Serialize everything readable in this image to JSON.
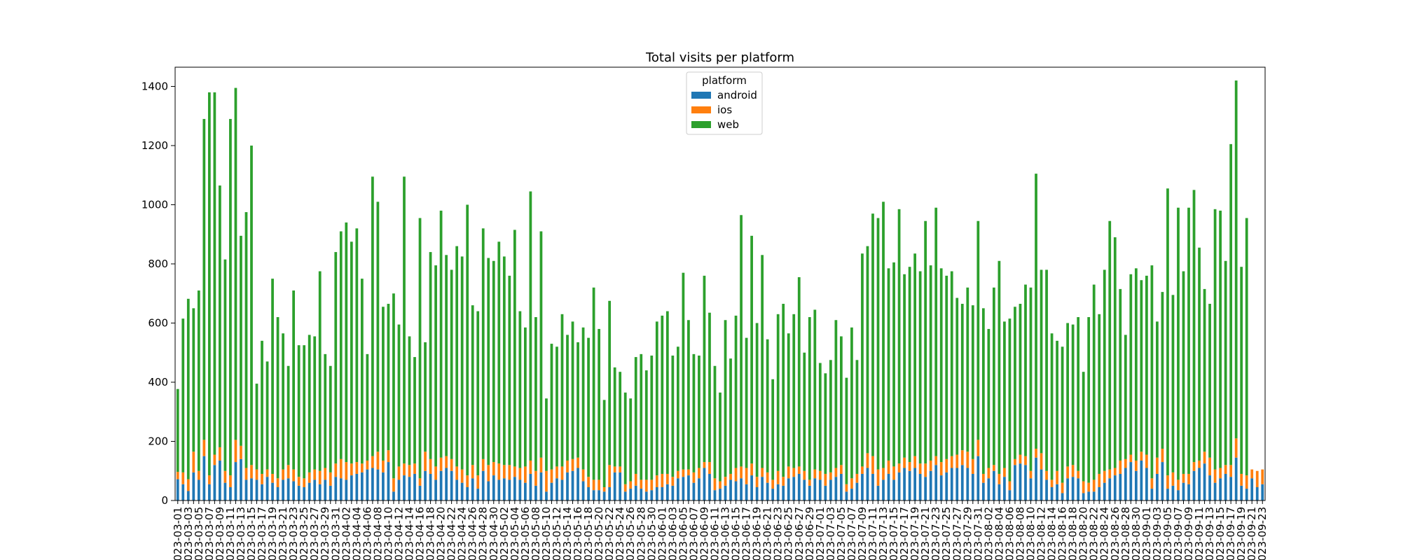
{
  "chart_data": {
    "type": "bar",
    "stacked": true,
    "title": "Total visits per platform",
    "xlabel": "",
    "ylabel": "",
    "ylim": [
      0,
      1465
    ],
    "yticks": [
      0,
      200,
      400,
      600,
      800,
      1000,
      1200,
      1400
    ],
    "grid": false,
    "legend": {
      "title": "platform",
      "placement": "top-center"
    },
    "x_start": "2023-03-01",
    "tick_every": 2,
    "series": [
      {
        "name": "android",
        "color": "#1f77b4",
        "values": [
          72,
          55,
          32,
          95,
          70,
          150,
          55,
          120,
          135,
          60,
          45,
          130,
          140,
          70,
          75,
          70,
          55,
          80,
          60,
          45,
          70,
          75,
          65,
          50,
          45,
          60,
          70,
          55,
          70,
          50,
          80,
          75,
          70,
          85,
          90,
          95,
          105,
          110,
          105,
          95,
          130,
          30,
          70,
          85,
          80,
          90,
          50,
          100,
          90,
          70,
          100,
          110,
          100,
          70,
          60,
          45,
          75,
          40,
          100,
          65,
          85,
          70,
          75,
          70,
          80,
          70,
          60,
          90,
          50,
          95,
          30,
          60,
          75,
          70,
          95,
          100,
          110,
          65,
          45,
          35,
          35,
          30,
          45,
          95,
          95,
          30,
          40,
          50,
          40,
          30,
          35,
          45,
          45,
          55,
          50,
          75,
          80,
          85,
          60,
          75,
          110,
          90,
          35,
          40,
          50,
          70,
          65,
          75,
          55,
          85,
          45,
          80,
          60,
          40,
          55,
          50,
          75,
          80,
          90,
          70,
          50,
          75,
          70,
          50,
          70,
          80,
          90,
          30,
          40,
          60,
          90,
          110,
          90,
          50,
          70,
          90,
          70,
          95,
          110,
          100,
          110,
          90,
          80,
          100,
          120,
          85,
          95,
          110,
          110,
          120,
          110,
          90,
          150,
          60,
          75,
          100,
          55,
          80,
          35,
          120,
          125,
          120,
          75,
          145,
          105,
          70,
          45,
          55,
          25,
          75,
          80,
          75,
          25,
          30,
          30,
          45,
          60,
          75,
          85,
          90,
          110,
          130,
          100,
          135,
          110,
          40,
          90,
          130,
          40,
          50,
          35,
          60,
          55,
          100,
          110,
          125,
          85,
          60,
          75,
          90,
          80,
          145,
          50,
          40,
          75,
          45,
          55
        ]
      },
      {
        "name": "ios",
        "color": "#ff7f0e",
        "values": [
          25,
          40,
          40,
          70,
          30,
          55,
          30,
          35,
          45,
          40,
          40,
          75,
          45,
          40,
          45,
          35,
          35,
          25,
          30,
          30,
          35,
          45,
          40,
          30,
          30,
          35,
          35,
          45,
          40,
          45,
          45,
          65,
          60,
          40,
          40,
          30,
          30,
          40,
          60,
          40,
          40,
          45,
          45,
          40,
          40,
          35,
          25,
          65,
          50,
          45,
          45,
          40,
          40,
          45,
          45,
          40,
          45,
          45,
          40,
          55,
          45,
          55,
          45,
          50,
          35,
          40,
          55,
          45,
          50,
          50,
          70,
          45,
          40,
          45,
          40,
          40,
          35,
          40,
          35,
          35,
          35,
          15,
          75,
          20,
          20,
          25,
          25,
          40,
          30,
          40,
          35,
          40,
          45,
          35,
          30,
          25,
          25,
          20,
          35,
          35,
          20,
          40,
          40,
          25,
          30,
          20,
          45,
          40,
          55,
          40,
          35,
          30,
          35,
          30,
          45,
          30,
          40,
          30,
          25,
          30,
          20,
          30,
          30,
          40,
          25,
          30,
          30,
          25,
          35,
          30,
          25,
          50,
          60,
          55,
          40,
          45,
          45,
          30,
          35,
          30,
          40,
          35,
          45,
          35,
          30,
          45,
          45,
          40,
          45,
          50,
          55,
          50,
          55,
          30,
          35,
          20,
          35,
          30,
          30,
          20,
          30,
          30,
          25,
          30,
          55,
          30,
          25,
          45,
          35,
          40,
          40,
          25,
          40,
          30,
          40,
          45,
          40,
          30,
          25,
          45,
          30,
          25,
          35,
          30,
          45,
          35,
          55,
          45,
          45,
          45,
          35,
          30,
          35,
          30,
          25,
          40,
          60,
          45,
          35,
          30,
          40,
          65,
          40,
          45,
          30,
          55,
          50
        ]
      },
      {
        "name": "web",
        "color": "#2ca02c",
        "values": [
          280,
          520,
          610,
          485,
          610,
          1085,
          1295,
          1225,
          885,
          715,
          1205,
          1190,
          710,
          865,
          1080,
          290,
          450,
          365,
          660,
          545,
          460,
          335,
          605,
          445,
          450,
          465,
          450,
          675,
          385,
          360,
          715,
          770,
          810,
          750,
          790,
          625,
          360,
          945,
          845,
          520,
          495,
          625,
          480,
          970,
          435,
          360,
          880,
          370,
          700,
          680,
          835,
          680,
          640,
          745,
          720,
          915,
          540,
          555,
          780,
          700,
          680,
          750,
          705,
          640,
          800,
          530,
          470,
          910,
          520,
          765,
          245,
          425,
          405,
          515,
          425,
          465,
          390,
          480,
          470,
          650,
          510,
          295,
          555,
          335,
          320,
          310,
          280,
          395,
          425,
          370,
          420,
          520,
          535,
          550,
          410,
          420,
          665,
          505,
          400,
          380,
          630,
          505,
          380,
          300,
          530,
          390,
          515,
          850,
          440,
          770,
          520,
          720,
          450,
          340,
          530,
          585,
          450,
          520,
          640,
          400,
          550,
          540,
          365,
          340,
          380,
          500,
          435,
          360,
          510,
          385,
          720,
          700,
          820,
          850,
          900,
          650,
          690,
          860,
          620,
          660,
          685,
          650,
          820,
          660,
          840,
          655,
          620,
          625,
          530,
          495,
          555,
          520,
          740,
          560,
          470,
          600,
          720,
          495,
          550,
          515,
          510,
          580,
          620,
          930,
          620,
          680,
          495,
          440,
          460,
          485,
          475,
          520,
          370,
          560,
          660,
          540,
          680,
          840,
          780,
          580,
          420,
          610,
          650,
          580,
          605,
          720,
          460,
          530,
          970,
          600,
          920,
          685,
          900,
          920,
          720,
          550,
          520,
          880,
          870,
          690,
          1085,
          1210,
          700,
          870
        ]
      }
    ]
  }
}
